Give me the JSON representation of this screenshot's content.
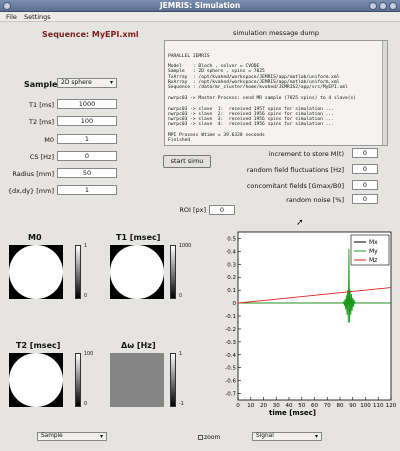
{
  "window": {
    "title": "JEMRIS: Simulation"
  },
  "menu": [
    "File",
    "Settings"
  ],
  "sequence_label": "Sequence: MyEPI.xml",
  "dump": {
    "title": "simulation message dump",
    "lines": [
      "PARALLEL JEMRIS",
      "",
      "Model    : Bloch , solver = CVODE",
      "Sample   : 2D sphere , spins = 7825",
      "TxArray  : /opt/kvahed/workspace/JEMRIS/app/matlab/uniform.xml",
      "RxArray  : /opt/kvahed/workspace/JEMRIS/app/matlab/uniform.xml",
      "Sequence : /data/mr_cluster/home/kvahed/JEMRIS2/app/src/MyEPI.xml",
      "",
      "nwrpc03 -> Master Process: send MR sample (7825 spins) to 4 slave(s)",
      "",
      "nwrpc03 -> slave  1:  received 1957 spins for simulation ...",
      "nwrpc03 -> slave  2:  received 1956 spins for simulation ...",
      "nwrpc03 -> slave  3:  received 1956 spins for simulation ...",
      "nwrpc03 -> slave  4:  received 1956 spins for simulation ...",
      "",
      "MPI Process Wtime = 39.6328 seconds",
      "Finished"
    ]
  },
  "sample": {
    "label": "Sample:",
    "value": "2D sphere"
  },
  "params": [
    {
      "label": "T1 [ms]",
      "value": "1000"
    },
    {
      "label": "T2 [ms]",
      "value": "100"
    },
    {
      "label": "M0",
      "value": "1"
    },
    {
      "label": "CS [Hz]",
      "value": "0"
    },
    {
      "label": "Radius [mm]",
      "value": "50"
    },
    {
      "label": "{dx,dy} [mm]",
      "value": "1"
    }
  ],
  "start_button": "start simu",
  "right_params": [
    {
      "label": "increment to store M(t)",
      "value": "0"
    },
    {
      "label": "random field fluctuations [Hz]",
      "value": "0"
    },
    {
      "label": "concomitant fields  [Gmax/B0]",
      "value": "0"
    },
    {
      "label": "random noise [%]",
      "value": "0"
    }
  ],
  "roi": {
    "label": "ROI [px]",
    "value": "0"
  },
  "maps": [
    {
      "title": "M0",
      "cbar_top": "1",
      "cbar_bottom": "0"
    },
    {
      "title": "T1 [msec]",
      "cbar_top": "1000",
      "cbar_bottom": "0"
    },
    {
      "title": "T2 [msec]",
      "cbar_top": "100",
      "cbar_bottom": "0"
    },
    {
      "title": "Δω [Hz]",
      "cbar_top": "1",
      "cbar_bottom": "-1"
    }
  ],
  "bottom": {
    "sample_select": "Sample",
    "zoom": "zoom",
    "signal_select": "Signal"
  },
  "colors": {
    "mx": "#000000",
    "my": "#1a9a1a",
    "mz": "#e02020"
  },
  "chart_data": {
    "type": "line",
    "title": "",
    "xlabel": "time [msec]",
    "ylabel": "",
    "xlim": [
      0,
      120
    ],
    "ylim": [
      -0.75,
      0.55
    ],
    "xticks": [
      0,
      10,
      20,
      30,
      40,
      50,
      60,
      70,
      80,
      90,
      100,
      110,
      120
    ],
    "yticks": [
      -0.7,
      -0.6,
      -0.5,
      -0.4,
      -0.3,
      -0.2,
      -0.1,
      0,
      0.1,
      0.2,
      0.3,
      0.4,
      0.5
    ],
    "ytick_labels": [
      "-0.7",
      "-0.6",
      "-0.5",
      "-0.4",
      "-0.3",
      "-0.2",
      "-0.1",
      "0",
      "0.1",
      "0.2",
      "0.3",
      "0.4",
      "0.5"
    ],
    "legend": [
      "Mx",
      "My",
      "Mz"
    ],
    "series": [
      {
        "name": "Mx",
        "x": [
          0,
          120
        ],
        "y": [
          0,
          0
        ]
      },
      {
        "name": "My",
        "x": [
          0,
          82,
          83,
          83.5,
          84,
          84.5,
          85,
          85.5,
          86,
          86.5,
          87,
          87.5,
          88,
          88.5,
          89,
          89.5,
          90,
          90.5,
          91,
          92,
          120
        ],
        "y": [
          0,
          0,
          0.01,
          -0.02,
          0.03,
          -0.05,
          0.06,
          -0.09,
          0.1,
          -0.15,
          0.42,
          -0.15,
          0.1,
          -0.09,
          0.07,
          -0.06,
          0.04,
          -0.03,
          0.02,
          0,
          0
        ]
      },
      {
        "name": "Mz",
        "x": [
          0,
          120
        ],
        "y": [
          0.0,
          0.12
        ]
      }
    ]
  }
}
